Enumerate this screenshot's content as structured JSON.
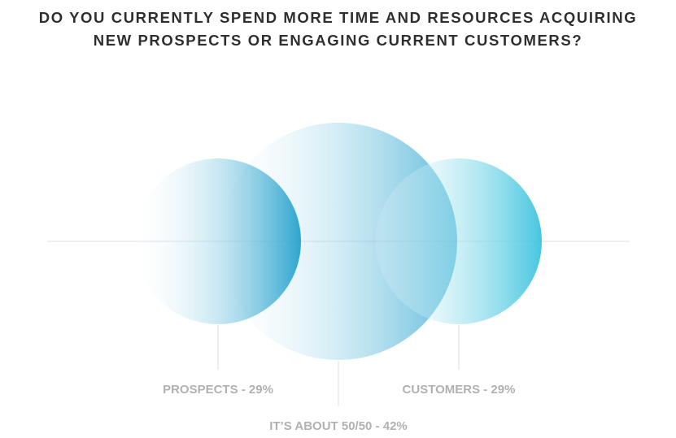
{
  "chart_data": {
    "type": "bubble",
    "title_lines": [
      "DO YOU CURRENTLY SPEND MORE TIME AND RESOURCES ACQUIRING",
      "NEW PROSPECTS OR ENGAGING CURRENT CUSTOMERS?"
    ],
    "series": [
      {
        "label": "PROSPECTS - 29%",
        "value": 29
      },
      {
        "label": "IT’S ABOUT 50/50 - 42%",
        "value": 42
      },
      {
        "label": "CUSTOMERS - 29%",
        "value": 29
      }
    ],
    "colors": {
      "gradient_start": "#ffffff",
      "gradient_end": "#1e9fcc",
      "right_end": "#3cc3de",
      "axis_line": "#e7e9ec",
      "label_text": "#b1b1b1",
      "title_text": "#2f2f2f"
    }
  }
}
